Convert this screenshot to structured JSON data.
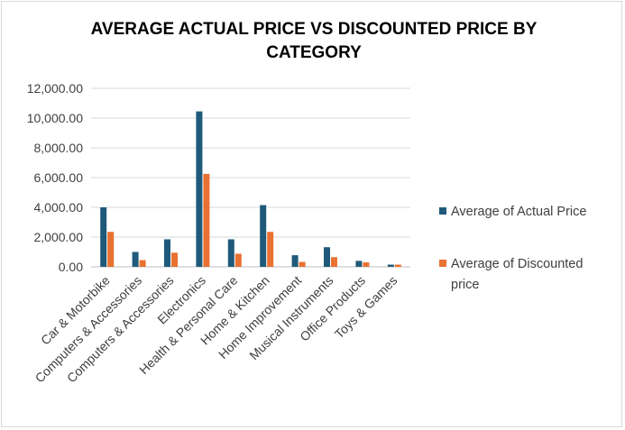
{
  "chart_data": {
    "type": "bar",
    "title": "AVERAGE ACTUAL PRICE VS DISCOUNTED PRICE BY CATEGORY",
    "categories": [
      "Car & Motorbike",
      "Computers & Accessories",
      "Computers & Accessories",
      "Electronics",
      "Health & Personal Care",
      "Home & Kitchen",
      "Home Improvement",
      "Musical Instruments",
      "Office Products",
      "Toys & Games"
    ],
    "series": [
      {
        "name": "Average of Actual Price",
        "color": "#1f5a7a",
        "values": [
          4000,
          1000,
          1850,
          10450,
          1850,
          4150,
          780,
          1320,
          400,
          150
        ]
      },
      {
        "name": "Average of Discounted price",
        "color": "#e97132",
        "values": [
          2350,
          450,
          950,
          6250,
          880,
          2350,
          330,
          650,
          300,
          150
        ]
      }
    ],
    "ylim": [
      0,
      12000
    ],
    "y_ticks": [
      "0.00",
      "2,000.00",
      "4,000.00",
      "6,000.00",
      "8,000.00",
      "10,000.00",
      "12,000.00"
    ],
    "grid": true,
    "legend": "right"
  }
}
